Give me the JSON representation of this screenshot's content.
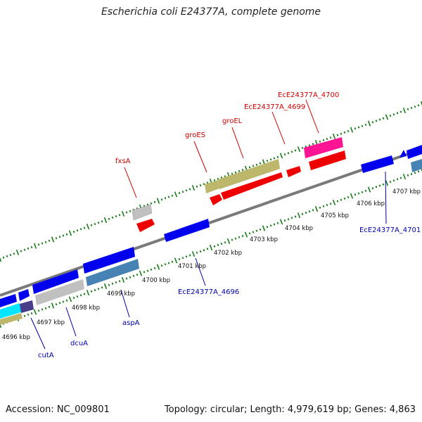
{
  "title": "Escherichia coli E24377A, complete genome",
  "footer": {
    "accession": "Accession: NC_009801",
    "summary": "Topology: circular; Length: 4,979,619 bp; Genes: 4,863"
  },
  "colors": {
    "backbone": "#808080",
    "ticks": "#1a7a1a",
    "label_red": "#cc0000",
    "label_blue": "#0000aa",
    "gene_blue": "#0000ee",
    "gene_red": "#ee0000",
    "gene_khaki": "#bdb76b",
    "gene_gray": "#c0c0c0",
    "gene_steel": "#4682b4",
    "gene_pink": "#ff1493",
    "gene_cyan": "#00e5ff",
    "gene_navy": "#483d8b"
  },
  "scale": {
    "unit": "kbp",
    "ticks": [
      {
        "label": "4696 kbp"
      },
      {
        "label": "4697 kbp"
      },
      {
        "label": "4698 kbp"
      },
      {
        "label": "4699 kbp"
      },
      {
        "label": "4700 kbp"
      },
      {
        "label": "4701 kbp"
      },
      {
        "label": "4702 kbp"
      },
      {
        "label": "4703 kbp"
      },
      {
        "label": "4704 kbp"
      },
      {
        "label": "4705 kbp"
      },
      {
        "label": "4706 kbp"
      },
      {
        "label": "4707 kbp"
      }
    ]
  },
  "gene_labels": {
    "fxsA": "fxsA",
    "groES": "groES",
    "groEL": "groEL",
    "ec4699": "EcE24377A_4699",
    "ec4700": "EcE24377A_4700",
    "ec4701": "EcE24377A_4701",
    "ec4696": "EcE24377A_4696",
    "aspA": "aspA",
    "dcuA": "dcuA",
    "cutA": "cutA"
  }
}
